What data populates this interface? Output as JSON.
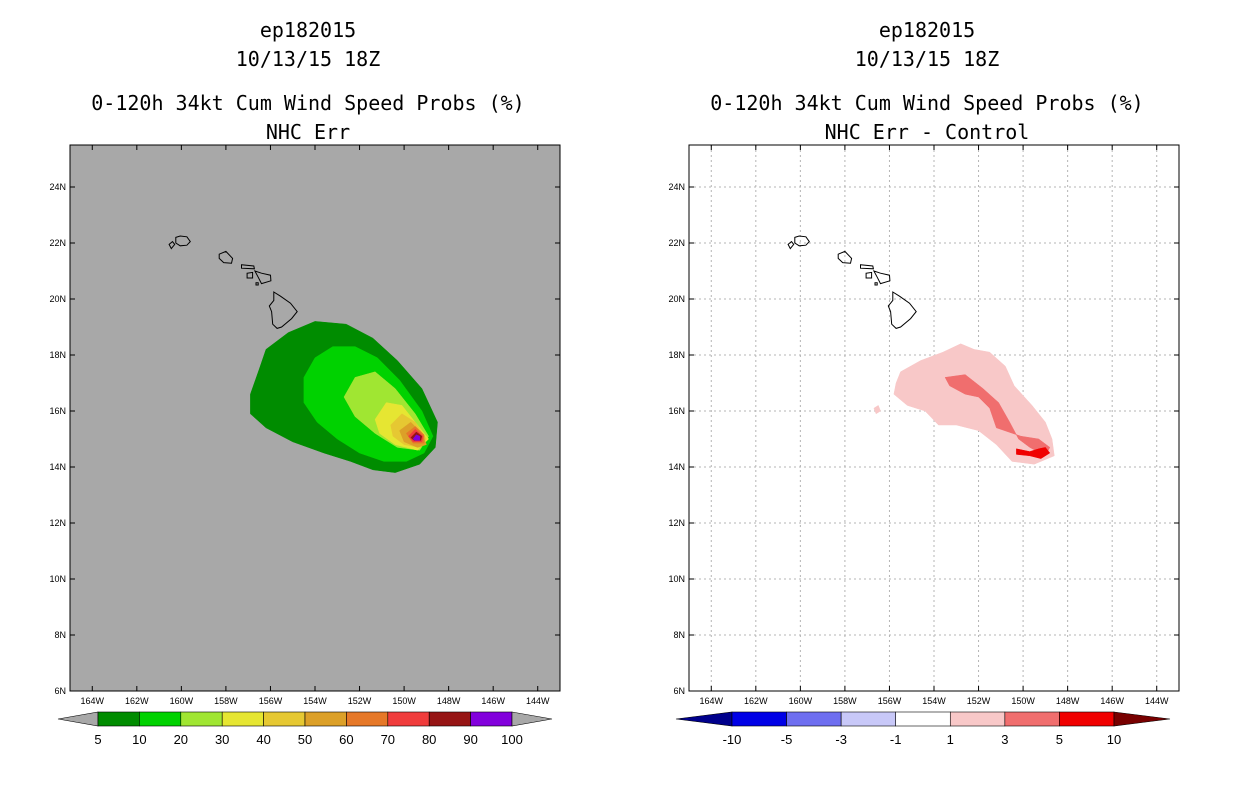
{
  "chart_data": [
    {
      "type": "heatmap",
      "storm_id": "ep182015",
      "datetime": "10/13/15 18Z",
      "title": "0-120h 34kt Cum Wind Speed Probs (%)",
      "subtitle": "NHC Err",
      "background": "#a8a8a8",
      "xlim": [
        -165,
        -143
      ],
      "ylim": [
        6,
        25.5
      ],
      "x_ticks": [
        "164W",
        "162W",
        "160W",
        "158W",
        "156W",
        "154W",
        "152W",
        "150W",
        "148W",
        "146W",
        "144W"
      ],
      "y_ticks": [
        "6N",
        "8N",
        "10N",
        "12N",
        "14N",
        "16N",
        "18N",
        "20N",
        "22N",
        "24N"
      ],
      "grid": false,
      "colorbar": {
        "labels": [
          "5",
          "10",
          "20",
          "30",
          "40",
          "50",
          "60",
          "70",
          "80",
          "90",
          "100"
        ],
        "colors": [
          "#008c00",
          "#00d200",
          "#a0e632",
          "#e6e632",
          "#e6c832",
          "#dca028",
          "#e67828",
          "#f03c3c",
          "#961414",
          "#8200dc"
        ],
        "low_extension": "#a8a8a8",
        "high_extension": "#a8a8a8"
      },
      "contours": [
        {
          "level": 5,
          "color": "#008c00",
          "points": [
            [
              -156.5,
              17.5
            ],
            [
              -156.2,
              18.2
            ],
            [
              -155.2,
              18.8
            ],
            [
              -154,
              19.2
            ],
            [
              -152.6,
              19.1
            ],
            [
              -151.4,
              18.6
            ],
            [
              -150.3,
              17.8
            ],
            [
              -149.2,
              16.8
            ],
            [
              -148.5,
              15.6
            ],
            [
              -148.6,
              14.7
            ],
            [
              -149.3,
              14.1
            ],
            [
              -150.4,
              13.8
            ],
            [
              -151.4,
              13.9
            ],
            [
              -152.4,
              14.2
            ],
            [
              -153.6,
              14.5
            ],
            [
              -155,
              14.9
            ],
            [
              -156.2,
              15.4
            ],
            [
              -156.9,
              15.9
            ],
            [
              -156.9,
              16.6
            ]
          ]
        },
        {
          "level": 10,
          "color": "#00d200",
          "points": [
            [
              -154.5,
              17.2
            ],
            [
              -154,
              17.9
            ],
            [
              -153.2,
              18.3
            ],
            [
              -152.2,
              18.3
            ],
            [
              -151.2,
              17.9
            ],
            [
              -150.2,
              17.1
            ],
            [
              -149.2,
              16
            ],
            [
              -148.7,
              15.1
            ],
            [
              -149.1,
              14.5
            ],
            [
              -149.9,
              14.2
            ],
            [
              -150.9,
              14.2
            ],
            [
              -152,
              14.5
            ],
            [
              -153,
              15
            ],
            [
              -153.9,
              15.6
            ],
            [
              -154.5,
              16.3
            ]
          ]
        },
        {
          "level": 20,
          "color": "#a0e632",
          "points": [
            [
              -152.7,
              16.5
            ],
            [
              -152.2,
              17.2
            ],
            [
              -151.3,
              17.4
            ],
            [
              -150.4,
              16.8
            ],
            [
              -149.5,
              15.9
            ],
            [
              -148.9,
              15.1
            ],
            [
              -149.3,
              14.6
            ],
            [
              -150.3,
              14.7
            ],
            [
              -151.3,
              15.2
            ],
            [
              -152.2,
              15.8
            ]
          ]
        },
        {
          "level": 30,
          "color": "#e6e632",
          "points": [
            [
              -151.3,
              15.7
            ],
            [
              -150.8,
              16.3
            ],
            [
              -150.1,
              16.2
            ],
            [
              -149.5,
              15.6
            ],
            [
              -148.9,
              15
            ],
            [
              -149.4,
              14.6
            ],
            [
              -150.4,
              14.8
            ],
            [
              -151.1,
              15.2
            ]
          ]
        },
        {
          "level": 40,
          "color": "#e6c832",
          "points": [
            [
              -150.6,
              15.5
            ],
            [
              -150.1,
              15.9
            ],
            [
              -149.5,
              15.6
            ],
            [
              -149,
              15
            ],
            [
              -149.3,
              14.7
            ],
            [
              -150,
              14.8
            ],
            [
              -150.5,
              15.1
            ]
          ]
        },
        {
          "level": 50,
          "color": "#dca028",
          "points": [
            [
              -150.2,
              15.3
            ],
            [
              -149.7,
              15.6
            ],
            [
              -149.2,
              15.2
            ],
            [
              -149,
              14.8
            ],
            [
              -149.4,
              14.7
            ],
            [
              -150,
              14.9
            ]
          ]
        },
        {
          "level": 60,
          "color": "#e67828",
          "points": [
            [
              -149.9,
              15.2
            ],
            [
              -149.5,
              15.45
            ],
            [
              -149.1,
              15.15
            ],
            [
              -149.1,
              14.85
            ],
            [
              -149.6,
              14.85
            ]
          ]
        },
        {
          "level": 70,
          "color": "#f03c3c",
          "points": [
            [
              -149.8,
              15.1
            ],
            [
              -149.5,
              15.35
            ],
            [
              -149.15,
              15.1
            ],
            [
              -149.2,
              14.9
            ],
            [
              -149.6,
              14.9
            ]
          ]
        },
        {
          "level": 80,
          "color": "#961414",
          "points": [
            [
              -149.7,
              15.05
            ],
            [
              -149.45,
              15.25
            ],
            [
              -149.2,
              15.1
            ],
            [
              -149.25,
              14.95
            ],
            [
              -149.55,
              14.95
            ]
          ]
        },
        {
          "level": 90,
          "color": "#8200dc",
          "points": [
            [
              -149.6,
              15
            ],
            [
              -149.45,
              15.15
            ],
            [
              -149.3,
              15.1
            ],
            [
              -149.3,
              14.95
            ],
            [
              -149.5,
              14.95
            ]
          ]
        }
      ]
    },
    {
      "type": "heatmap",
      "storm_id": "ep182015",
      "datetime": "10/13/15 18Z",
      "title": "0-120h 34kt Cum Wind Speed Probs (%)",
      "subtitle": "NHC Err - Control",
      "background": "#ffffff",
      "xlim": [
        -165,
        -143
      ],
      "ylim": [
        6,
        25.5
      ],
      "x_ticks": [
        "164W",
        "162W",
        "160W",
        "158W",
        "156W",
        "154W",
        "152W",
        "150W",
        "148W",
        "146W",
        "144W"
      ],
      "y_ticks": [
        "6N",
        "8N",
        "10N",
        "12N",
        "14N",
        "16N",
        "18N",
        "20N",
        "22N",
        "24N"
      ],
      "grid": true,
      "colorbar": {
        "labels": [
          "-10",
          "-5",
          "-3",
          "-1",
          "1",
          "3",
          "5",
          "10"
        ],
        "colors": [
          "#0000e6",
          "#6e6ef0",
          "#c8c8f8",
          "#ffffff",
          "#f8c8c8",
          "#f06e6e",
          "#f00000"
        ],
        "low_extension": "#00008c",
        "high_extension": "#780000"
      },
      "contours": [
        {
          "level": 1,
          "color": "#f8c8c8",
          "points": [
            [
              -155.7,
              17
            ],
            [
              -155.5,
              17.4
            ],
            [
              -154.6,
              17.8
            ],
            [
              -153.6,
              18.1
            ],
            [
              -152.8,
              18.4
            ],
            [
              -152.2,
              18.2
            ],
            [
              -151.5,
              18.1
            ],
            [
              -150.8,
              17.6
            ],
            [
              -150.4,
              16.9
            ],
            [
              -149.6,
              16.2
            ],
            [
              -149,
              15.6
            ],
            [
              -148.7,
              15
            ],
            [
              -148.6,
              14.4
            ],
            [
              -149.5,
              14.1
            ],
            [
              -150.5,
              14.2
            ],
            [
              -151.2,
              14.8
            ],
            [
              -152,
              15.3
            ],
            [
              -153,
              15.5
            ],
            [
              -153.8,
              15.5
            ],
            [
              -154.4,
              16
            ],
            [
              -155.2,
              16.2
            ],
            [
              -155.8,
              16.6
            ]
          ]
        },
        {
          "level": 3,
          "color": "#f06e6e",
          "points": [
            [
              -153.5,
              17.2
            ],
            [
              -152.6,
              17.3
            ],
            [
              -151.8,
              16.8
            ],
            [
              -151.1,
              16.3
            ],
            [
              -150.6,
              15.6
            ],
            [
              -150.2,
              15
            ],
            [
              -149.7,
              14.7
            ],
            [
              -149,
              14.4
            ],
            [
              -148.8,
              14.7
            ],
            [
              -149.3,
              15
            ],
            [
              -150.1,
              15.1
            ],
            [
              -151.2,
              15.4
            ],
            [
              -151.5,
              16.1
            ],
            [
              -152,
              16.5
            ],
            [
              -152.6,
              16.6
            ],
            [
              -153.3,
              16.9
            ]
          ]
        },
        {
          "level": 5,
          "color": "#f00000",
          "points": [
            [
              -150.3,
              14.65
            ],
            [
              -149.7,
              14.55
            ],
            [
              -149.3,
              14.65
            ],
            [
              -149,
              14.7
            ],
            [
              -148.8,
              14.5
            ],
            [
              -149.2,
              14.3
            ],
            [
              -149.7,
              14.4
            ],
            [
              -150.3,
              14.45
            ]
          ]
        },
        {
          "level": 1,
          "color": "#f8c8c8",
          "points": [
            [
              -156.7,
              16.1
            ],
            [
              -156.5,
              16.2
            ],
            [
              -156.4,
              16
            ],
            [
              -156.6,
              15.9
            ]
          ]
        }
      ]
    }
  ]
}
